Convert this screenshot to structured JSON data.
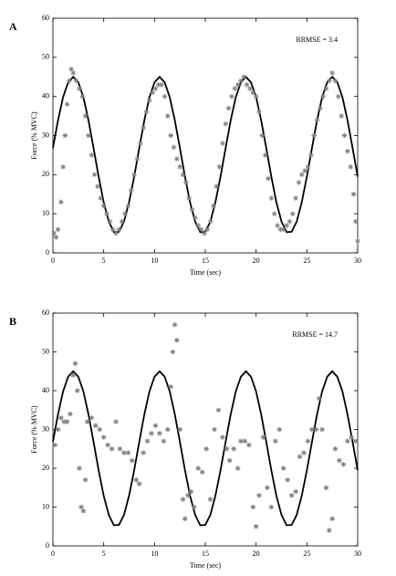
{
  "chart_data": [
    {
      "type": "scatter",
      "panel": "A",
      "annotation": "RRMSE = 3.4",
      "xlabel": "Time (sec)",
      "ylabel": "Force (% MVC)",
      "xlim": [
        0,
        30
      ],
      "ylim": [
        0,
        60
      ],
      "xticks": [
        0,
        5,
        10,
        15,
        20,
        25,
        30
      ],
      "yticks": [
        0,
        10,
        20,
        30,
        40,
        50,
        60
      ],
      "series": [
        {
          "style": "line",
          "color": "#000000",
          "x": [
            0,
            0.5,
            1,
            1.5,
            2,
            2.5,
            3,
            3.5,
            4,
            4.5,
            5,
            5.5,
            6,
            6.5,
            7,
            7.5,
            8,
            8.5,
            9,
            9.5,
            10,
            10.5,
            11,
            11.5,
            12,
            12.5,
            13,
            13.5,
            14,
            14.5,
            15,
            15.5,
            16,
            16.5,
            17,
            17.5,
            18,
            18.5,
            19,
            19.5,
            20,
            20.5,
            21,
            21.5,
            22,
            22.5,
            23,
            23.5,
            24,
            24.5,
            25,
            25.5,
            26,
            26.5,
            27,
            27.5,
            28,
            28.5,
            29,
            29.5,
            30
          ],
          "values": [
            26.8,
            33.9,
            39.8,
            43.6,
            45,
            43.6,
            39.8,
            33.9,
            26.8,
            19.5,
            12.9,
            8.0,
            5.3,
            5.4,
            8.0,
            13.0,
            19.5,
            26.8,
            33.9,
            39.8,
            43.6,
            45,
            43.6,
            39.8,
            33.9,
            26.8,
            19.5,
            12.9,
            8.0,
            5.3,
            5.4,
            8.0,
            13.0,
            19.5,
            26.8,
            33.9,
            39.8,
            43.6,
            45,
            43.6,
            39.8,
            33.9,
            26.8,
            19.5,
            12.9,
            8.0,
            5.3,
            5.4,
            8.0,
            13.0,
            19.5,
            26.8,
            33.9,
            39.8,
            43.6,
            45,
            43.6,
            39.8,
            33.9,
            26.8,
            19.5
          ]
        },
        {
          "style": "markers",
          "color": "#808080",
          "x": [
            0.1,
            0.3,
            0.5,
            0.8,
            1,
            1.2,
            1.4,
            1.6,
            1.8,
            2,
            2.3,
            2.6,
            2.9,
            3.2,
            3.5,
            3.8,
            4.1,
            4.4,
            4.7,
            5,
            5.3,
            5.6,
            5.9,
            6.2,
            6.5,
            6.8,
            7.1,
            7.4,
            7.7,
            8,
            8.3,
            8.6,
            8.9,
            9.2,
            9.5,
            9.8,
            10.1,
            10.4,
            10.7,
            11,
            11.3,
            11.6,
            11.9,
            12.2,
            12.5,
            12.8,
            13.1,
            13.4,
            13.7,
            14,
            14.3,
            14.6,
            14.9,
            15.2,
            15.5,
            15.8,
            16.1,
            16.4,
            16.7,
            17,
            17.3,
            17.6,
            17.9,
            18.2,
            18.5,
            18.8,
            19.1,
            19.4,
            19.7,
            20,
            20.3,
            20.6,
            20.9,
            21.2,
            21.5,
            21.8,
            22.1,
            22.4,
            22.7,
            23,
            23.3,
            23.6,
            23.9,
            24.2,
            24.5,
            24.8,
            25.1,
            25.4,
            25.7,
            26,
            26.3,
            26.6,
            26.9,
            27.2,
            27.5,
            27.8,
            28.1,
            28.4,
            28.7,
            29,
            29.3,
            29.6,
            29.8,
            30
          ],
          "values": [
            5,
            4,
            6,
            13,
            22,
            30,
            38,
            44,
            47,
            46,
            44,
            42,
            40,
            35,
            30,
            25,
            20,
            17,
            14,
            12,
            10,
            8,
            6,
            5,
            6,
            8,
            10,
            12,
            16,
            20,
            24,
            28,
            32,
            36,
            39,
            41,
            42,
            43,
            43,
            40,
            35,
            30,
            27,
            24,
            22,
            20,
            18,
            14,
            11,
            9,
            7,
            6,
            5,
            6,
            8,
            12,
            17,
            22,
            28,
            33,
            37,
            40,
            42,
            43,
            44,
            45,
            43,
            42,
            41,
            40,
            36,
            30,
            25,
            19,
            14,
            10,
            7,
            6,
            6,
            7,
            8,
            10,
            14,
            18,
            20,
            21,
            22,
            25,
            30,
            34,
            37,
            40,
            42,
            44,
            46,
            44,
            40,
            35,
            30,
            26,
            22,
            15,
            8,
            3
          ]
        }
      ]
    },
    {
      "type": "scatter",
      "panel": "B",
      "annotation": "RRMSE = 14.7",
      "xlabel": "Time (sec)",
      "ylabel": "Force (% MVC)",
      "xlim": [
        0,
        30
      ],
      "ylim": [
        0,
        60
      ],
      "xticks": [
        0,
        5,
        10,
        15,
        20,
        25,
        30
      ],
      "yticks": [
        0,
        10,
        20,
        30,
        40,
        50,
        60
      ],
      "series": [
        {
          "style": "line",
          "color": "#000000",
          "x": [
            0,
            0.5,
            1,
            1.5,
            2,
            2.5,
            3,
            3.5,
            4,
            4.5,
            5,
            5.5,
            6,
            6.5,
            7,
            7.5,
            8,
            8.5,
            9,
            9.5,
            10,
            10.5,
            11,
            11.5,
            12,
            12.5,
            13,
            13.5,
            14,
            14.5,
            15,
            15.5,
            16,
            16.5,
            17,
            17.5,
            18,
            18.5,
            19,
            19.5,
            20,
            20.5,
            21,
            21.5,
            22,
            22.5,
            23,
            23.5,
            24,
            24.5,
            25,
            25.5,
            26,
            26.5,
            27,
            27.5,
            28,
            28.5,
            29,
            29.5,
            30
          ],
          "values": [
            26.8,
            33.9,
            39.8,
            43.6,
            45,
            43.6,
            39.8,
            33.9,
            26.8,
            19.5,
            12.9,
            8.0,
            5.3,
            5.4,
            8.0,
            13.0,
            19.5,
            26.8,
            33.9,
            39.8,
            43.6,
            45,
            43.6,
            39.8,
            33.9,
            26.8,
            19.5,
            12.9,
            8.0,
            5.3,
            5.4,
            8.0,
            13.0,
            19.5,
            26.8,
            33.9,
            39.8,
            43.6,
            45,
            43.6,
            39.8,
            33.9,
            26.8,
            19.5,
            12.9,
            8.0,
            5.3,
            5.4,
            8.0,
            13.0,
            19.5,
            26.8,
            33.9,
            39.8,
            43.6,
            45,
            43.6,
            39.8,
            33.9,
            26.8,
            19.5
          ]
        },
        {
          "style": "markers",
          "color": "#808080",
          "x": [
            0.2,
            0.5,
            0.8,
            1.1,
            1.4,
            1.7,
            2,
            2.2,
            2.4,
            2.6,
            2.8,
            3,
            3.2,
            3.4,
            3.8,
            4.2,
            4.6,
            5,
            5.4,
            5.8,
            6.2,
            6.6,
            7,
            7.4,
            7.8,
            8.2,
            8.5,
            8.9,
            9.3,
            9.7,
            10.1,
            10.5,
            10.9,
            11.3,
            11.6,
            11.8,
            12,
            12.2,
            12.5,
            12.8,
            13,
            13.3,
            13.6,
            13.9,
            14.3,
            14.7,
            15.1,
            15.5,
            15.9,
            16.3,
            16.7,
            17.1,
            17.4,
            17.8,
            18.2,
            18.5,
            18.9,
            19.3,
            19.7,
            20,
            20.3,
            20.7,
            21.1,
            21.5,
            21.9,
            22.3,
            22.7,
            23.1,
            23.5,
            23.9,
            24.3,
            24.7,
            25.1,
            25.5,
            25.9,
            26.2,
            26.5,
            26.9,
            27.2,
            27.5,
            27.8,
            28.2,
            28.6,
            29,
            29.4,
            29.8
          ],
          "values": [
            26,
            30,
            33,
            32,
            32,
            34,
            44,
            47,
            40,
            20,
            10,
            9,
            17,
            32,
            33,
            31,
            30,
            28,
            26,
            25,
            32,
            25,
            24,
            24,
            22,
            17,
            16,
            24,
            27,
            29,
            31,
            29,
            27,
            30,
            41,
            50,
            57,
            53,
            30,
            12,
            7,
            13,
            14,
            10,
            20,
            19,
            25,
            12,
            30,
            35,
            28,
            25,
            22,
            25,
            20,
            27,
            27,
            26,
            10,
            5,
            13,
            28,
            15,
            10,
            27,
            30,
            20,
            17,
            13,
            14,
            23,
            24,
            27,
            30,
            30,
            38,
            30,
            15,
            4,
            7,
            25,
            22,
            21,
            27,
            28,
            27
          ]
        }
      ]
    }
  ]
}
